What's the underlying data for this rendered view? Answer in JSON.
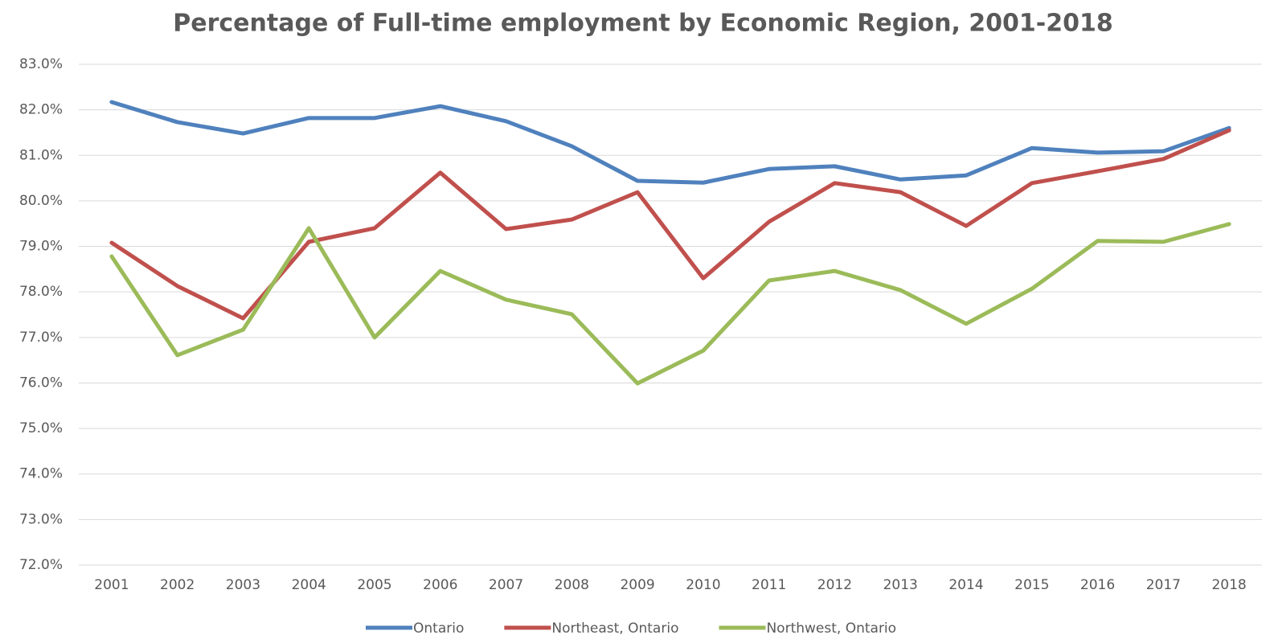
{
  "chart_data": {
    "type": "line",
    "title": "Percentage of Full-time employment by Economic Region, 2001-2018",
    "categories": [
      "2001",
      "2002",
      "2003",
      "2004",
      "2005",
      "2006",
      "2007",
      "2008",
      "2009",
      "2010",
      "2011",
      "2012",
      "2013",
      "2014",
      "2015",
      "2016",
      "2017",
      "2018"
    ],
    "series": [
      {
        "name": "Ontario",
        "color": "#4f81bd",
        "values": [
          82.17,
          81.73,
          81.48,
          81.82,
          81.82,
          82.08,
          81.75,
          81.2,
          80.44,
          80.4,
          80.7,
          80.76,
          80.47,
          80.56,
          81.16,
          81.06,
          81.09,
          81.6
        ]
      },
      {
        "name": "Northeast, Ontario",
        "color": "#c0504d",
        "values": [
          79.08,
          78.13,
          77.42,
          79.1,
          79.4,
          80.62,
          79.38,
          79.59,
          80.19,
          78.3,
          79.54,
          80.39,
          80.19,
          79.45,
          80.39,
          80.65,
          80.92,
          81.55
        ]
      },
      {
        "name": "Northwest, Ontario",
        "color": "#9bbb59",
        "values": [
          78.78,
          76.61,
          77.17,
          79.4,
          77.0,
          78.46,
          77.83,
          77.51,
          75.99,
          76.71,
          78.25,
          78.46,
          78.04,
          77.3,
          78.07,
          79.12,
          79.1,
          79.49
        ]
      }
    ],
    "ylim": [
      72,
      83
    ],
    "yticks": [
      {
        "value": 72,
        "label": "72.0%"
      },
      {
        "value": 73,
        "label": "73.0%"
      },
      {
        "value": 74,
        "label": "74.0%"
      },
      {
        "value": 75,
        "label": "75.0%"
      },
      {
        "value": 76,
        "label": "76.0%"
      },
      {
        "value": 77,
        "label": "77.0%"
      },
      {
        "value": 78,
        "label": "78.0%"
      },
      {
        "value": 79,
        "label": "79.0%"
      },
      {
        "value": 80,
        "label": "80.0%"
      },
      {
        "value": 81,
        "label": "81.0%"
      },
      {
        "value": 82,
        "label": "82.0%"
      },
      {
        "value": 83,
        "label": "83.0%"
      }
    ],
    "grid": true,
    "legend": "bottom"
  }
}
